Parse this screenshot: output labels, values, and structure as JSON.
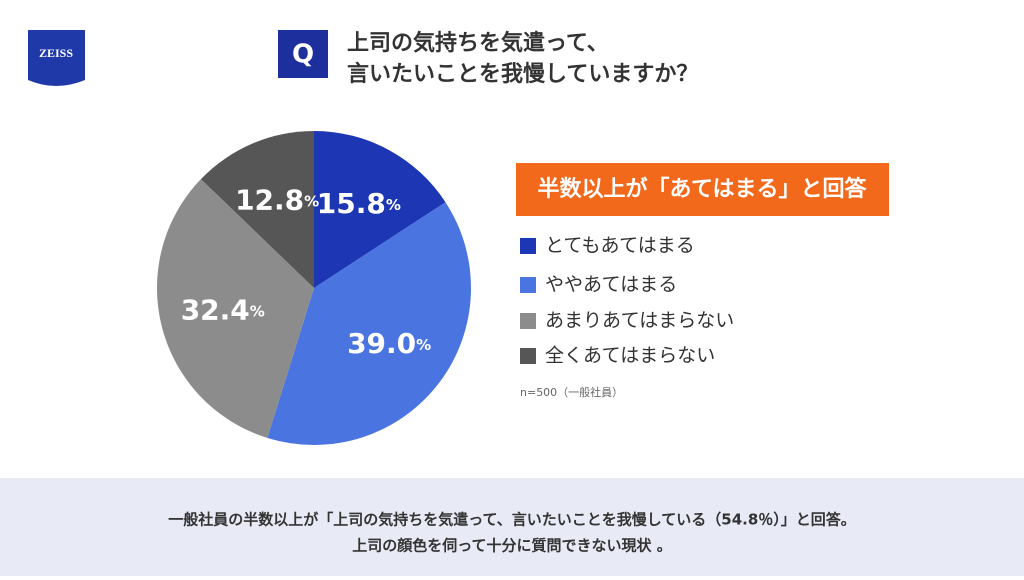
{
  "logo": "ZEISS",
  "chart_data": {
    "type": "pie",
    "question_mark": "Q",
    "title": [
      "上司の気持ちを気遣って、",
      "言いたいことを我慢していますか？"
    ],
    "callout": "半数以上が「あてはまる」と回答",
    "categories": [
      "とてもあてはまる",
      "ややあてはまる",
      "あまりあてはまらない",
      "全くあてはまらない"
    ],
    "values": [
      15.8,
      39.0,
      32.4,
      12.8
    ],
    "value_labels": [
      "15.8",
      "39.0",
      "32.4",
      "12.8"
    ],
    "unit": "%",
    "colors": [
      "#1c36b4",
      "#4a74e0",
      "#8c8c8c",
      "#565656"
    ],
    "note": "n=500（一般社員）"
  },
  "footer": [
    "一般社員の半数以上が「上司の気持ちを気遣って、言いたいことを我慢している（54.8％）」と回答。",
    "上司の顔色を伺って十分に質問できない現状 。"
  ]
}
